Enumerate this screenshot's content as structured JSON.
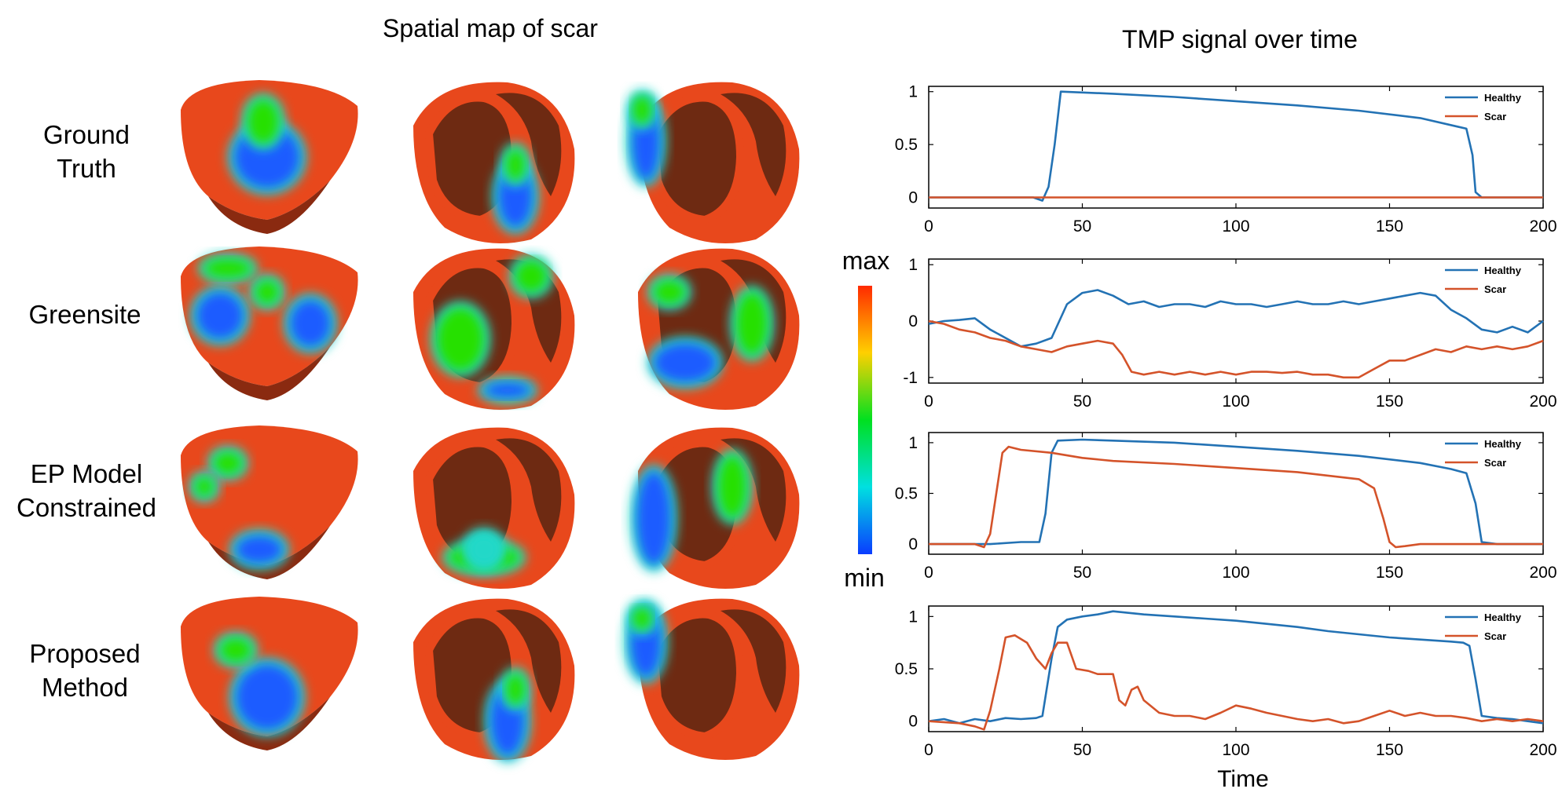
{
  "left_panel": {
    "title": "Spatial map of scar",
    "rows": [
      {
        "lines": [
          "Ground",
          "Truth"
        ]
      },
      {
        "lines": [
          "Greensite"
        ]
      },
      {
        "lines": [
          "EP Model",
          "Constrained"
        ]
      },
      {
        "lines": [
          "Proposed",
          "Method"
        ]
      }
    ],
    "colorbar": {
      "max_label": "max",
      "min_label": "min",
      "colors": [
        "#ff2a00",
        "#ffd000",
        "#00e020",
        "#00e0e0",
        "#0a3cff"
      ]
    },
    "heart_colors": {
      "base": "#e8481c",
      "shadow": "#8a2a10",
      "cavity": "#6e2a12",
      "scar": "#1a5cff",
      "border": "#22d8c8",
      "mid": "#28e000"
    }
  },
  "right_panel": {
    "title": "TMP signal over time",
    "xlabel": "Time"
  },
  "chart_data": [
    {
      "type": "line",
      "title": "",
      "xlabel": "",
      "ylabel": "",
      "xlim": [
        0,
        200
      ],
      "ylim": [
        -0.1,
        1.05
      ],
      "xticks": [
        0,
        50,
        100,
        150,
        200
      ],
      "yticks": [
        0,
        0.5,
        1
      ],
      "ytick_labels": [
        "0",
        "0.5",
        "1"
      ],
      "legend": "top-right",
      "series": [
        {
          "name": "Healthy",
          "color": "#2372b4",
          "x": [
            0,
            34,
            37,
            39,
            41,
            43,
            60,
            80,
            100,
            120,
            140,
            160,
            172,
            175,
            177,
            178,
            180,
            200
          ],
          "y": [
            0,
            0,
            -0.03,
            0.1,
            0.5,
            1.0,
            0.98,
            0.95,
            0.91,
            0.87,
            0.82,
            0.75,
            0.67,
            0.65,
            0.4,
            0.05,
            0,
            0
          ]
        },
        {
          "name": "Scar",
          "color": "#d4532a",
          "x": [
            0,
            200
          ],
          "y": [
            0,
            0
          ]
        }
      ]
    },
    {
      "type": "line",
      "title": "",
      "xlabel": "",
      "ylabel": "",
      "xlim": [
        0,
        200
      ],
      "ylim": [
        -1.1,
        1.1
      ],
      "xticks": [
        0,
        50,
        100,
        150,
        200
      ],
      "yticks": [
        -1,
        0,
        1
      ],
      "ytick_labels": [
        "-1",
        "0",
        "1"
      ],
      "legend": "top-right",
      "series": [
        {
          "name": "Healthy",
          "color": "#2372b4",
          "x": [
            0,
            5,
            10,
            15,
            20,
            25,
            30,
            35,
            40,
            45,
            50,
            55,
            60,
            65,
            70,
            75,
            80,
            85,
            90,
            95,
            100,
            105,
            110,
            115,
            120,
            125,
            130,
            135,
            140,
            145,
            150,
            155,
            160,
            165,
            170,
            175,
            180,
            185,
            190,
            195,
            200
          ],
          "y": [
            -0.05,
            0.0,
            0.02,
            0.05,
            -0.15,
            -0.3,
            -0.45,
            -0.4,
            -0.3,
            0.3,
            0.5,
            0.55,
            0.45,
            0.3,
            0.35,
            0.25,
            0.3,
            0.3,
            0.25,
            0.35,
            0.3,
            0.3,
            0.25,
            0.3,
            0.35,
            0.3,
            0.3,
            0.35,
            0.3,
            0.35,
            0.4,
            0.45,
            0.5,
            0.45,
            0.2,
            0.05,
            -0.15,
            -0.2,
            -0.1,
            -0.2,
            0.0
          ]
        },
        {
          "name": "Scar",
          "color": "#d4532a",
          "x": [
            0,
            5,
            10,
            15,
            20,
            25,
            30,
            35,
            40,
            45,
            50,
            55,
            60,
            63,
            66,
            70,
            75,
            80,
            85,
            90,
            95,
            100,
            105,
            110,
            115,
            120,
            125,
            130,
            135,
            140,
            145,
            150,
            155,
            160,
            165,
            170,
            175,
            180,
            185,
            190,
            195,
            200
          ],
          "y": [
            0.0,
            -0.05,
            -0.15,
            -0.2,
            -0.3,
            -0.35,
            -0.45,
            -0.5,
            -0.55,
            -0.45,
            -0.4,
            -0.35,
            -0.4,
            -0.6,
            -0.9,
            -0.95,
            -0.9,
            -0.95,
            -0.9,
            -0.95,
            -0.9,
            -0.95,
            -0.9,
            -0.9,
            -0.92,
            -0.9,
            -0.95,
            -0.95,
            -1.0,
            -1.0,
            -0.85,
            -0.7,
            -0.7,
            -0.6,
            -0.5,
            -0.55,
            -0.45,
            -0.5,
            -0.45,
            -0.5,
            -0.45,
            -0.35
          ]
        }
      ]
    },
    {
      "type": "line",
      "title": "",
      "xlabel": "",
      "ylabel": "",
      "xlim": [
        0,
        200
      ],
      "ylim": [
        -0.1,
        1.1
      ],
      "xticks": [
        0,
        50,
        100,
        150,
        200
      ],
      "yticks": [
        0,
        0.5,
        1
      ],
      "ytick_labels": [
        "0",
        "0.5",
        "1"
      ],
      "legend": "top-right",
      "series": [
        {
          "name": "Healthy",
          "color": "#2372b4",
          "x": [
            0,
            20,
            30,
            36,
            38,
            40,
            42,
            50,
            60,
            80,
            100,
            120,
            140,
            160,
            170,
            175,
            178,
            180,
            185,
            200
          ],
          "y": [
            0,
            0,
            0.02,
            0.02,
            0.3,
            0.9,
            1.02,
            1.03,
            1.02,
            1.0,
            0.96,
            0.92,
            0.87,
            0.8,
            0.74,
            0.7,
            0.4,
            0.02,
            0,
            0
          ]
        },
        {
          "name": "Scar",
          "color": "#d4532a",
          "x": [
            0,
            15,
            18,
            20,
            22,
            24,
            26,
            30,
            40,
            50,
            60,
            80,
            100,
            120,
            140,
            145,
            148,
            150,
            152,
            155,
            160,
            170,
            180,
            200
          ],
          "y": [
            0,
            0,
            -0.03,
            0.1,
            0.5,
            0.9,
            0.96,
            0.93,
            0.9,
            0.85,
            0.82,
            0.79,
            0.75,
            0.71,
            0.64,
            0.55,
            0.25,
            0.02,
            -0.03,
            -0.02,
            0.0,
            0.0,
            0.0,
            0.0
          ]
        }
      ]
    },
    {
      "type": "line",
      "title": "",
      "xlabel": "Time",
      "ylabel": "",
      "xlim": [
        0,
        200
      ],
      "ylim": [
        -0.1,
        1.1
      ],
      "xticks": [
        0,
        50,
        100,
        150,
        200
      ],
      "yticks": [
        0,
        0.5,
        1
      ],
      "ytick_labels": [
        "0",
        "0.5",
        "1"
      ],
      "legend": "top-right",
      "series": [
        {
          "name": "Healthy",
          "color": "#2372b4",
          "x": [
            0,
            5,
            10,
            15,
            20,
            25,
            30,
            35,
            37,
            40,
            42,
            45,
            50,
            55,
            60,
            70,
            80,
            90,
            100,
            110,
            120,
            130,
            140,
            150,
            160,
            170,
            174,
            176,
            178,
            180,
            185,
            190,
            195,
            200
          ],
          "y": [
            0.0,
            0.02,
            -0.02,
            0.02,
            0.0,
            0.03,
            0.02,
            0.03,
            0.05,
            0.6,
            0.9,
            0.97,
            1.0,
            1.02,
            1.05,
            1.02,
            1.0,
            0.98,
            0.96,
            0.93,
            0.9,
            0.86,
            0.83,
            0.8,
            0.78,
            0.76,
            0.75,
            0.72,
            0.4,
            0.05,
            0.03,
            0.02,
            0.0,
            -0.02
          ]
        },
        {
          "name": "Scar",
          "color": "#d4532a",
          "x": [
            0,
            10,
            15,
            18,
            20,
            23,
            25,
            28,
            32,
            35,
            38,
            40,
            42,
            45,
            48,
            52,
            55,
            60,
            62,
            64,
            66,
            68,
            70,
            75,
            80,
            85,
            90,
            95,
            100,
            105,
            110,
            115,
            120,
            125,
            130,
            135,
            140,
            145,
            150,
            155,
            160,
            165,
            170,
            175,
            180,
            185,
            190,
            195,
            200
          ],
          "y": [
            0.0,
            -0.02,
            -0.05,
            -0.08,
            0.1,
            0.5,
            0.8,
            0.82,
            0.75,
            0.6,
            0.5,
            0.65,
            0.75,
            0.75,
            0.5,
            0.48,
            0.45,
            0.45,
            0.2,
            0.15,
            0.3,
            0.33,
            0.2,
            0.08,
            0.05,
            0.05,
            0.02,
            0.08,
            0.15,
            0.12,
            0.08,
            0.05,
            0.02,
            0.0,
            0.02,
            -0.02,
            0.0,
            0.05,
            0.1,
            0.05,
            0.08,
            0.05,
            0.05,
            0.03,
            0.0,
            0.02,
            0.0,
            0.02,
            0.0
          ]
        }
      ]
    }
  ]
}
